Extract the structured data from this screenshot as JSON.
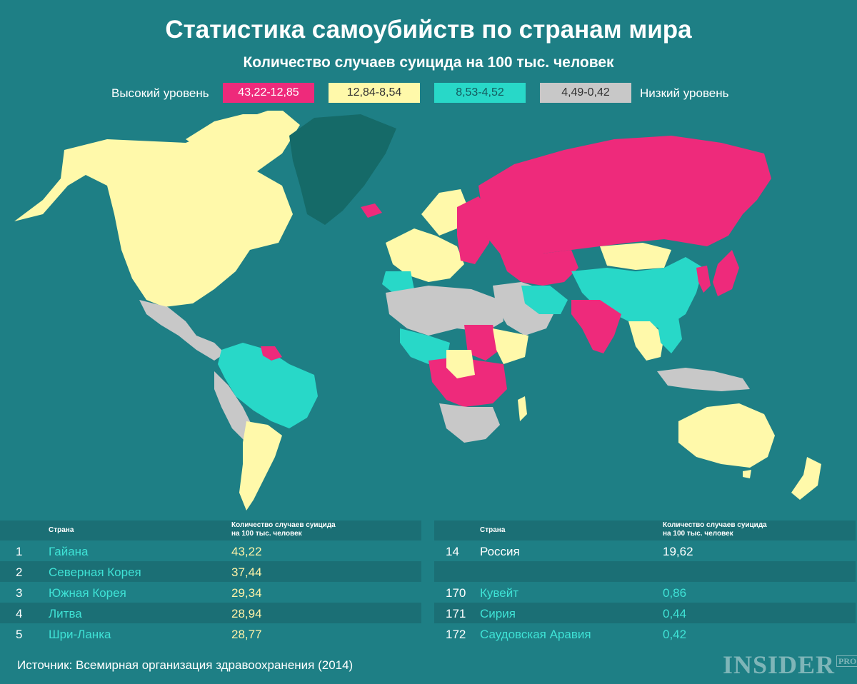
{
  "title": "Статистика самоубийств по странам мира",
  "subtitle": "Количество случаев суицида на 100 тыс. человек",
  "legend": {
    "high_label": "Высокий уровень",
    "low_label": "Низкий уровень",
    "items": [
      {
        "range": "43,22-12,85",
        "color": "#ee2a7b"
      },
      {
        "range": "12,84-8,54",
        "color": "#fff9aa"
      },
      {
        "range": "8,53-4,52",
        "color": "#28d8c8"
      },
      {
        "range": "4,49-0,42",
        "color": "#c8c8c8"
      }
    ]
  },
  "map_colors": {
    "pink": "#ee2a7b",
    "yellow": "#fff9aa",
    "cyan": "#28d8c8",
    "grey": "#c8c8c8",
    "greenland": "#156a68"
  },
  "table": {
    "col_country": "Страна",
    "col_rate_1": "Количество случаев суицида",
    "col_rate_2": "на 100 тыс. человек",
    "left": [
      {
        "rank": "1",
        "country": "Гайана",
        "rate": "43,22"
      },
      {
        "rank": "2",
        "country": "Северная Корея",
        "rate": "37,44"
      },
      {
        "rank": "3",
        "country": "Южная Корея",
        "rate": "29,34"
      },
      {
        "rank": "4",
        "country": "Литва",
        "rate": "28,94"
      },
      {
        "rank": "5",
        "country": "Шри-Ланка",
        "rate": "28,77"
      }
    ],
    "right": [
      {
        "rank": "14",
        "country": "Россия",
        "rate": "19,62"
      },
      {
        "rank": "",
        "country": "",
        "rate": ""
      },
      {
        "rank": "170",
        "country": "Кувейт",
        "rate": "0,86"
      },
      {
        "rank": "171",
        "country": "Сирия",
        "rate": "0,44"
      },
      {
        "rank": "172",
        "country": "Саудовская Аравия",
        "rate": "0,42"
      }
    ]
  },
  "source": "Источник: Всемирная организация здравоохранения (2014)",
  "logo": {
    "main": "INSIDER",
    "tag": "PRO"
  }
}
